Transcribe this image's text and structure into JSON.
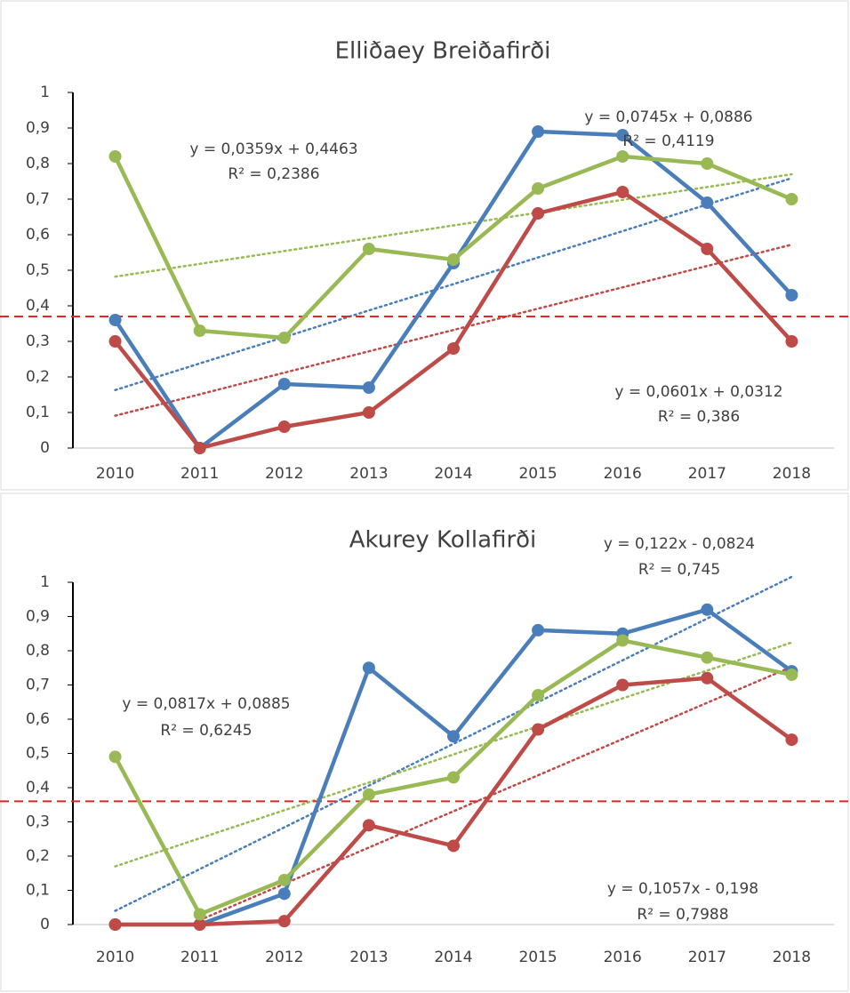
{
  "chart_data": [
    {
      "type": "line",
      "title": "Elliðaey Breiðafirði",
      "categories": [
        "2010",
        "2011",
        "2012",
        "2013",
        "2014",
        "2015",
        "2016",
        "2017",
        "2018"
      ],
      "series": [
        {
          "color": "#4a7ebb",
          "values": [
            0.36,
            0,
            0.18,
            0.17,
            0.52,
            0.89,
            0.88,
            0.69,
            0.43
          ]
        },
        {
          "color": "#be4b48",
          "values": [
            0.3,
            0,
            0.06,
            0.1,
            0.28,
            0.66,
            0.72,
            0.56,
            0.3
          ]
        },
        {
          "color": "#98b954",
          "values": [
            0.82,
            0.33,
            0.31,
            0.56,
            0.53,
            0.73,
            0.82,
            0.8,
            0.7
          ]
        }
      ],
      "trendlines": [
        {
          "color": "#4a7ebb",
          "values": [
            0.163,
            0.238,
            0.312,
            0.387,
            0.461,
            0.536,
            0.61,
            0.685,
            0.759
          ]
        },
        {
          "color": "#be4b48",
          "values": [
            0.091,
            0.151,
            0.212,
            0.272,
            0.332,
            0.392,
            0.452,
            0.512,
            0.572
          ]
        },
        {
          "color": "#98b954",
          "values": [
            0.482,
            0.518,
            0.554,
            0.59,
            0.626,
            0.662,
            0.698,
            0.734,
            0.77
          ]
        }
      ],
      "annotations": [
        "y = 0,0359x + 0,4463",
        "R² = 0,2386",
        "y = 0,0745x + 0,0886",
        "R² = 0,4119",
        "y = 0,0601x + 0,0312",
        "R² = 0,386"
      ],
      "ref_line": {
        "value": 0.37,
        "color": "#e8231f"
      },
      "ylim": [
        0,
        1
      ],
      "yticks": [
        0,
        {
          "value": 0.1,
          "label": "0,1"
        },
        {
          "value": 0.2,
          "label": "0,2"
        },
        {
          "value": 0.3,
          "label": "0,3"
        },
        {
          "value": 0.4,
          "label": "0,4"
        },
        {
          "value": 0.5,
          "label": "0,5"
        },
        {
          "value": 0.6,
          "label": "0,6"
        },
        {
          "value": 0.7,
          "label": "0,7"
        },
        {
          "value": 0.8,
          "label": "0,8"
        },
        {
          "value": 0.9,
          "label": "0,9"
        },
        1
      ],
      "grid": false
    },
    {
      "type": "line",
      "title": "Akurey Kollafirði",
      "categories": [
        "2010",
        "2011",
        "2012",
        "2013",
        "2014",
        "2015",
        "2016",
        "2017",
        "2018"
      ],
      "series": [
        {
          "color": "#4a7ebb",
          "values": [
            0,
            0,
            0.09,
            0.75,
            0.55,
            0.86,
            0.85,
            0.92,
            0.74
          ]
        },
        {
          "color": "#be4b48",
          "values": [
            0,
            0,
            0.01,
            0.29,
            0.23,
            0.57,
            0.7,
            0.72,
            0.54
          ]
        },
        {
          "color": "#98b954",
          "values": [
            0.49,
            0.03,
            0.13,
            0.38,
            0.43,
            0.67,
            0.83,
            0.78,
            0.73
          ]
        }
      ],
      "trendlines": [
        {
          "color": "#4a7ebb",
          "values": [
            0.04,
            0.162,
            0.284,
            0.406,
            0.528,
            0.65,
            0.772,
            0.894,
            1.016
          ]
        },
        {
          "color": "#be4b48",
          "values": [
            null,
            0.013,
            0.119,
            0.225,
            0.331,
            0.436,
            0.542,
            0.648,
            0.753
          ]
        },
        {
          "color": "#98b954",
          "values": [
            0.17,
            0.252,
            0.334,
            0.415,
            0.497,
            0.579,
            0.661,
            0.742,
            0.824
          ]
        }
      ],
      "annotations": [
        "y = 0,122x - 0,0824",
        "R² = 0,745",
        "y = 0,0817x + 0,0885",
        "R² = 0,6245",
        "y = 0,1057x - 0,198",
        "R² = 0,7988"
      ],
      "ref_line": {
        "value": 0.36,
        "color": "#e8231f"
      },
      "ylim": [
        0,
        1
      ],
      "yticks": [
        0,
        {
          "value": 0.1,
          "label": "0,1"
        },
        {
          "value": 0.2,
          "label": "0,2"
        },
        {
          "value": 0.3,
          "label": "0,3"
        },
        {
          "value": 0.4,
          "label": "0,4"
        },
        {
          "value": 0.5,
          "label": "0,5"
        },
        {
          "value": 0.6,
          "label": "0,6"
        },
        {
          "value": 0.7,
          "label": "0,7"
        },
        {
          "value": 0.8,
          "label": "0,8"
        },
        {
          "value": 0.9,
          "label": "0,9"
        },
        1
      ],
      "grid": false
    }
  ]
}
